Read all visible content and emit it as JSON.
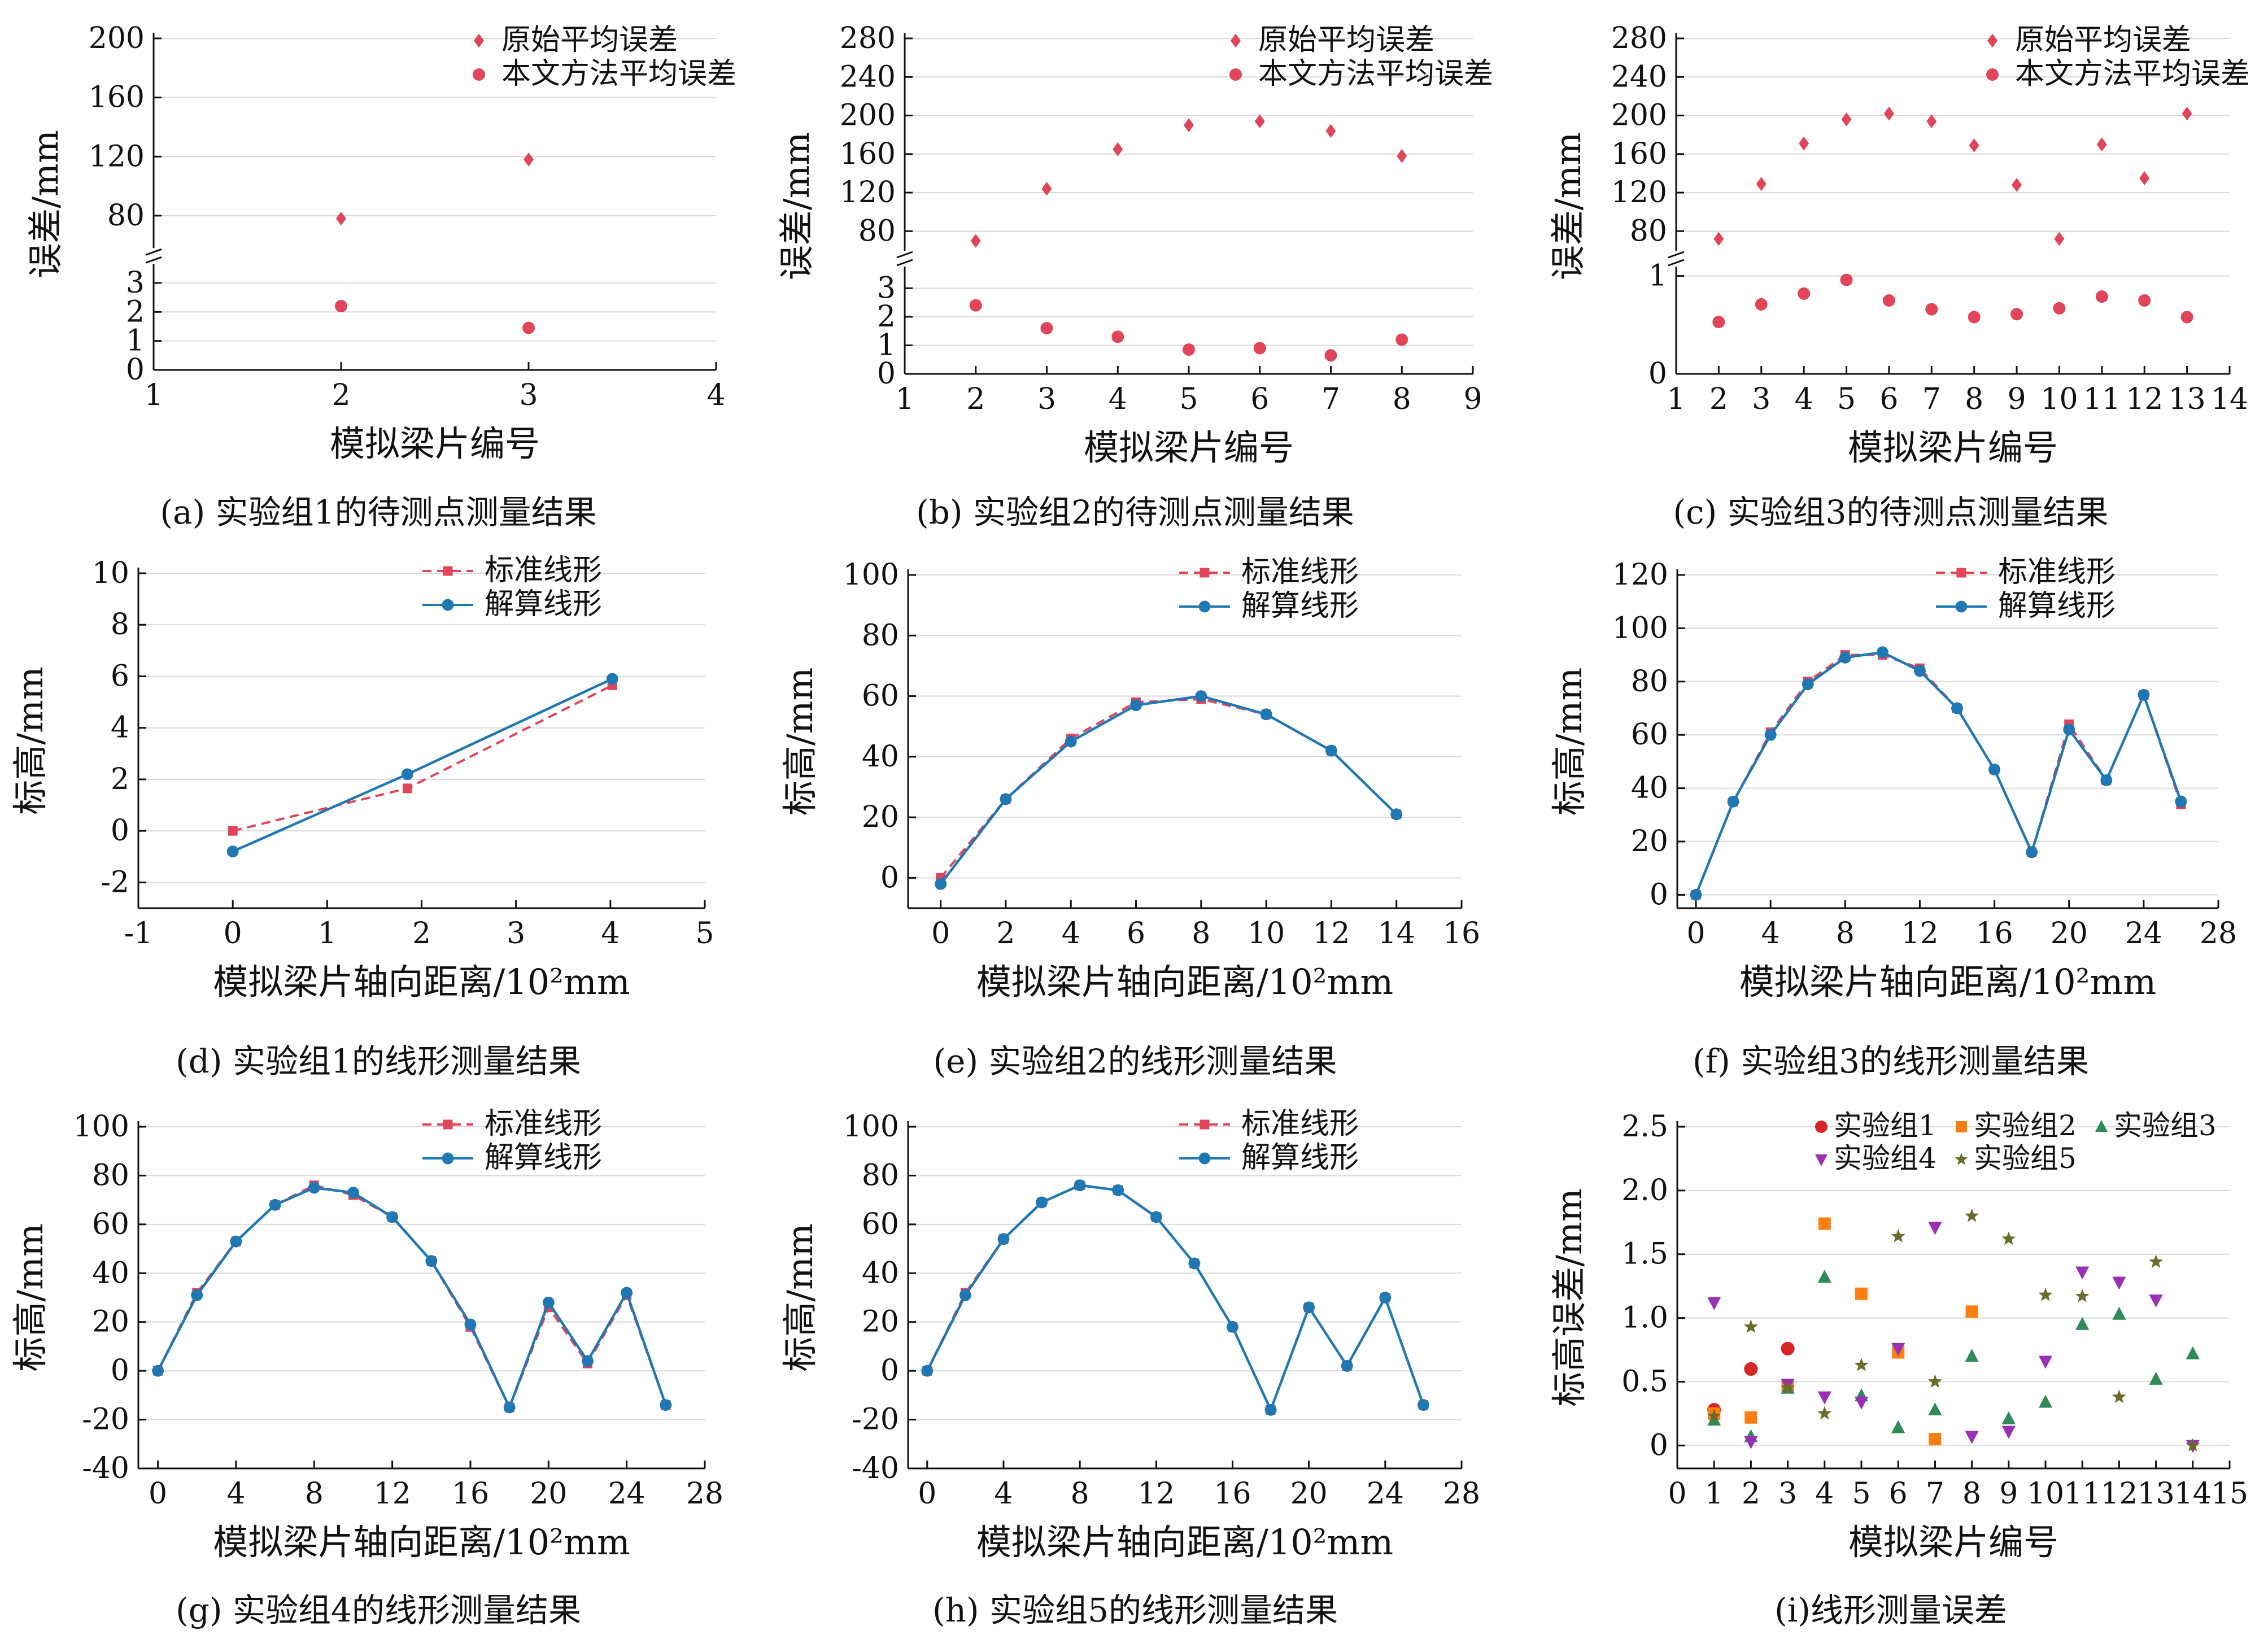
{
  "colors": {
    "original": "#e0455a",
    "method": "#e0455a",
    "standard": "#e0455a",
    "solved": "#1f77b4",
    "grid": "#d9d9d9",
    "g1": "#d62728",
    "g2": "#ff7f0e",
    "g3": "#2e8b57",
    "g4": "#9b30b4",
    "g5": "#6b6b2a"
  },
  "chart_data": [
    {
      "id": "a",
      "type": "scatter",
      "caption": "(a) 实验组1的待测点测量结果",
      "xlabel": "模拟梁片编号",
      "ylabel": "误差/mm",
      "xlim": [
        1,
        4
      ],
      "xticks": [
        1,
        2,
        3,
        4
      ],
      "broken_axis": {
        "lower": [
          0,
          3.5
        ],
        "lower_ticks": [
          0,
          1,
          2,
          3
        ],
        "upper": [
          55,
          200
        ],
        "upper_ticks": [
          80,
          120,
          160,
          200
        ]
      },
      "legend_position": "top-right",
      "series": [
        {
          "name": "原始平均误差",
          "marker": "diamond",
          "x": [
            2,
            3
          ],
          "y": [
            78,
            118
          ]
        },
        {
          "name": "本文方法平均误差",
          "marker": "circle",
          "x": [
            2,
            3
          ],
          "y": [
            2.2,
            1.45
          ]
        }
      ]
    },
    {
      "id": "b",
      "type": "scatter",
      "caption": "(b) 实验组2的待测点测量结果",
      "xlabel": "模拟梁片编号",
      "ylabel": "误差/mm",
      "xlim": [
        1,
        9
      ],
      "xticks": [
        1,
        2,
        3,
        4,
        5,
        6,
        7,
        8,
        9
      ],
      "broken_axis": {
        "lower": [
          0,
          3.6
        ],
        "lower_ticks": [
          0,
          1,
          2,
          3
        ],
        "upper": [
          55,
          280
        ],
        "upper_ticks": [
          80,
          120,
          160,
          200,
          240,
          280
        ]
      },
      "legend_position": "top-right",
      "series": [
        {
          "name": "原始平均误差",
          "marker": "diamond",
          "x": [
            2,
            3,
            4,
            5,
            6,
            7,
            8
          ],
          "y": [
            70,
            124,
            165,
            190,
            194,
            184,
            158
          ]
        },
        {
          "name": "本文方法平均误差",
          "marker": "circle",
          "x": [
            2,
            3,
            4,
            5,
            6,
            7,
            8
          ],
          "y": [
            2.4,
            1.6,
            1.3,
            0.85,
            0.9,
            0.65,
            1.2
          ]
        }
      ]
    },
    {
      "id": "c",
      "type": "scatter",
      "caption": "(c) 实验组3的待测点测量结果",
      "xlabel": "模拟梁片编号",
      "ylabel": "误差/mm",
      "xlim": [
        1,
        14
      ],
      "xticks": [
        1,
        2,
        3,
        4,
        5,
        6,
        7,
        8,
        9,
        10,
        11,
        12,
        13,
        14
      ],
      "broken_axis": {
        "lower": [
          0,
          1.05
        ],
        "lower_ticks": [
          0,
          1
        ],
        "upper": [
          55,
          280
        ],
        "upper_ticks": [
          80,
          120,
          160,
          200,
          240,
          280
        ]
      },
      "legend_position": "top-right",
      "series": [
        {
          "name": "原始平均误差",
          "marker": "diamond",
          "x": [
            2,
            3,
            4,
            5,
            6,
            7,
            8,
            9,
            10,
            11,
            12,
            13
          ],
          "y": [
            72,
            129,
            171,
            196,
            202,
            194,
            169,
            128,
            72,
            170,
            135,
            202
          ]
        },
        {
          "name": "本文方法平均误差",
          "marker": "circle",
          "x": [
            2,
            3,
            4,
            5,
            6,
            7,
            8,
            9,
            10,
            11,
            12,
            13
          ],
          "y": [
            0.53,
            0.71,
            0.82,
            0.96,
            0.75,
            0.66,
            0.58,
            0.61,
            0.67,
            0.79,
            0.75,
            0.58
          ]
        }
      ]
    },
    {
      "id": "d",
      "type": "line",
      "caption": "(d) 实验组1的线形测量结果",
      "xlabel": "模拟梁片轴向距离/10²mm",
      "ylabel": "标高/mm",
      "xlim": [
        -1,
        5
      ],
      "xticks": [
        -1,
        0,
        1,
        2,
        3,
        4,
        5
      ],
      "ylim": [
        -3,
        10
      ],
      "yticks": [
        -2,
        0,
        2,
        4,
        6,
        8,
        10
      ],
      "legend_position": "top-right",
      "series": [
        {
          "name": "标准线形",
          "style": "dashed-square",
          "x": [
            0,
            1.85,
            4.02
          ],
          "y": [
            0,
            1.65,
            5.65
          ]
        },
        {
          "name": "解算线形",
          "style": "solid-circle",
          "x": [
            0,
            1.85,
            4.02
          ],
          "y": [
            -0.8,
            2.2,
            5.9
          ]
        }
      ]
    },
    {
      "id": "e",
      "type": "line",
      "caption": "(e) 实验组2的线形测量结果",
      "xlabel": "模拟梁片轴向距离/10²mm",
      "ylabel": "标高/mm",
      "xlim": [
        -1,
        16
      ],
      "xticks": [
        0,
        2,
        4,
        6,
        8,
        10,
        12,
        14,
        16
      ],
      "ylim": [
        -10,
        100
      ],
      "yticks": [
        0,
        20,
        40,
        60,
        80,
        100
      ],
      "legend_position": "top-right",
      "series": [
        {
          "name": "标准线形",
          "style": "dashed-square",
          "x": [
            0,
            2,
            4,
            6,
            8,
            10,
            12,
            14
          ],
          "y": [
            0,
            26,
            46,
            58,
            59,
            54,
            42,
            21
          ]
        },
        {
          "name": "解算线形",
          "style": "solid-circle",
          "x": [
            0,
            2,
            4,
            6,
            8,
            10,
            12,
            14
          ],
          "y": [
            -2,
            26,
            45,
            57,
            60,
            54,
            42,
            21
          ]
        }
      ]
    },
    {
      "id": "f",
      "type": "line",
      "caption": "(f) 实验组3的线形测量结果",
      "xlabel": "模拟梁片轴向距离/10²mm",
      "ylabel": "标高/mm",
      "xlim": [
        -1,
        28
      ],
      "xticks": [
        0,
        4,
        8,
        12,
        16,
        20,
        24,
        28
      ],
      "ylim": [
        -5,
        120
      ],
      "yticks": [
        0,
        20,
        40,
        60,
        80,
        100,
        120
      ],
      "legend_position": "top-right",
      "series": [
        {
          "name": "标准线形",
          "style": "dashed-square",
          "x": [
            0,
            2,
            4,
            6,
            8,
            10,
            12,
            14,
            16,
            18,
            20,
            22,
            24,
            26
          ],
          "y": [
            0,
            35,
            61,
            80,
            90,
            90,
            85,
            70,
            47,
            16,
            64,
            43,
            75,
            34
          ]
        },
        {
          "name": "解算线形",
          "style": "solid-circle",
          "x": [
            0,
            2,
            4,
            6,
            8,
            10,
            12,
            14,
            16,
            18,
            20,
            22,
            24,
            26
          ],
          "y": [
            0,
            35,
            60,
            79,
            89,
            91,
            84,
            70,
            47,
            16,
            62,
            43,
            75,
            35
          ]
        }
      ]
    },
    {
      "id": "g",
      "type": "line",
      "caption": "(g) 实验组4的线形测量结果",
      "xlabel": "模拟梁片轴向距离/10²mm",
      "ylabel": "标高/mm",
      "xlim": [
        -1,
        28
      ],
      "xticks": [
        0,
        4,
        8,
        12,
        16,
        20,
        24,
        28
      ],
      "ylim": [
        -40,
        100
      ],
      "yticks": [
        -40,
        -20,
        0,
        20,
        40,
        60,
        80,
        100
      ],
      "legend_position": "top-right",
      "series": [
        {
          "name": "标准线形",
          "style": "dashed-square",
          "x": [
            0,
            2,
            4,
            6,
            8,
            10,
            12,
            14,
            16,
            18,
            20,
            22,
            24,
            26
          ],
          "y": [
            0,
            32,
            53,
            68,
            76,
            72,
            63,
            45,
            18,
            -15,
            26,
            3,
            31,
            -14
          ]
        },
        {
          "name": "解算线形",
          "style": "solid-circle",
          "x": [
            0,
            2,
            4,
            6,
            8,
            10,
            12,
            14,
            16,
            18,
            20,
            22,
            24,
            26
          ],
          "y": [
            0,
            31,
            53,
            68,
            75,
            73,
            63,
            45,
            19,
            -15,
            28,
            4,
            32,
            -14
          ]
        }
      ]
    },
    {
      "id": "h",
      "type": "line",
      "caption": "(h) 实验组5的线形测量结果",
      "xlabel": "模拟梁片轴向距离/10²mm",
      "ylabel": "标高/mm",
      "xlim": [
        -1,
        28
      ],
      "xticks": [
        0,
        4,
        8,
        12,
        16,
        20,
        24,
        28
      ],
      "ylim": [
        -40,
        100
      ],
      "yticks": [
        -40,
        -20,
        0,
        20,
        40,
        60,
        80,
        100
      ],
      "legend_position": "top-right",
      "series": [
        {
          "name": "标准线形",
          "style": "dashed-square",
          "x": [
            0,
            2,
            4,
            6,
            8,
            10,
            12,
            14,
            16,
            18,
            20,
            22,
            24,
            26
          ],
          "y": [
            0,
            32,
            54,
            69,
            76,
            74,
            63,
            44,
            18,
            -16,
            26,
            2,
            30,
            -14
          ]
        },
        {
          "name": "解算线形",
          "style": "solid-circle",
          "x": [
            0,
            2,
            4,
            6,
            8,
            10,
            12,
            14,
            16,
            18,
            20,
            22,
            24,
            26
          ],
          "y": [
            0,
            31,
            54,
            69,
            76,
            74,
            63,
            44,
            18,
            -16,
            26,
            2,
            30,
            -14
          ]
        }
      ]
    },
    {
      "id": "i",
      "type": "scatter",
      "caption": "(i)线形测量误差",
      "xlabel": "模拟梁片编号",
      "ylabel": "标高误差/mm",
      "xlim": [
        0,
        15
      ],
      "xticks": [
        0,
        1,
        2,
        3,
        4,
        5,
        6,
        7,
        8,
        9,
        10,
        11,
        12,
        13,
        14,
        15
      ],
      "ylim": [
        -0.18,
        2.5
      ],
      "yticks": [
        0,
        0.5,
        1.0,
        1.5,
        2.0,
        2.5
      ],
      "ytick_labels": [
        "0",
        "0.5",
        "1.0",
        "1.5",
        "2.0",
        "2.5"
      ],
      "legend_position": "top-right",
      "series": [
        {
          "name": "实验组1",
          "marker": "circle",
          "color_key": "g1",
          "x": [
            1,
            2,
            3
          ],
          "y": [
            0.28,
            0.6,
            0.76
          ]
        },
        {
          "name": "实验组2",
          "marker": "square",
          "color_key": "g2",
          "x": [
            1,
            2,
            3,
            4,
            5,
            6,
            7,
            8
          ],
          "y": [
            0.25,
            0.22,
            0.47,
            1.74,
            1.19,
            0.73,
            0.05,
            1.05
          ]
        },
        {
          "name": "实验组3",
          "marker": "triangle",
          "color_key": "g3",
          "x": [
            1,
            2,
            3,
            4,
            5,
            6,
            7,
            8,
            9,
            10,
            11,
            12,
            13,
            14
          ],
          "y": [
            0.2,
            0.07,
            0.45,
            1.32,
            0.39,
            0.14,
            0.28,
            0.7,
            0.21,
            0.34,
            0.95,
            1.03,
            0.52,
            0.72
          ]
        },
        {
          "name": "实验组4",
          "marker": "triangle-down",
          "color_key": "g4",
          "x": [
            1,
            2,
            3,
            4,
            5,
            6,
            7,
            8,
            9,
            10,
            11,
            12,
            13,
            14
          ],
          "y": [
            1.12,
            0.03,
            0.48,
            0.38,
            0.34,
            0.76,
            1.71,
            0.07,
            0.11,
            0.66,
            1.36,
            1.28,
            1.14,
            0.0
          ]
        },
        {
          "name": "实验组5",
          "marker": "star",
          "color_key": "g5",
          "x": [
            1,
            2,
            3,
            4,
            5,
            6,
            7,
            8,
            9,
            10,
            11,
            12,
            13,
            14
          ],
          "y": [
            0.23,
            0.93,
            0.45,
            0.25,
            0.63,
            1.64,
            0.5,
            1.8,
            1.62,
            1.18,
            1.17,
            0.38,
            1.44,
            0.0
          ]
        }
      ]
    }
  ]
}
